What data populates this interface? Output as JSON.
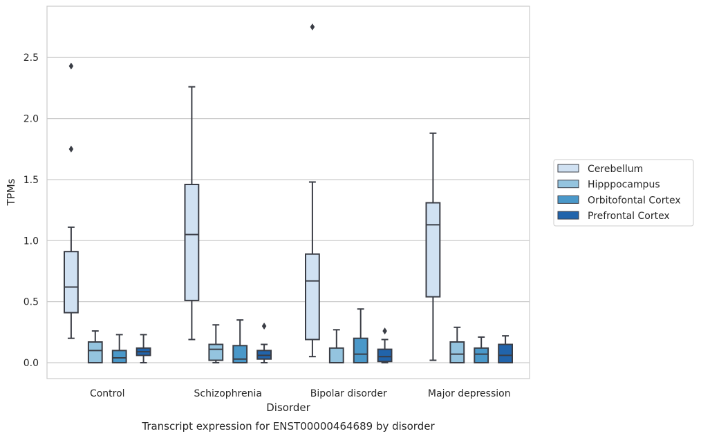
{
  "chart_data": {
    "type": "boxplot",
    "title": "",
    "caption": "Transcript expression for ENST00000464689 by disorder",
    "xlabel": "Disorder",
    "ylabel": "TPMs",
    "ylim": [
      -0.13,
      2.92
    ],
    "yticks": [
      0.0,
      0.5,
      1.0,
      1.5,
      2.0,
      2.5
    ],
    "ytick_labels": [
      "0.0",
      "0.5",
      "1.0",
      "1.5",
      "2.0",
      "2.5"
    ],
    "grid": "horizontal",
    "legend_position": "right",
    "categories": [
      "Control",
      "Schizophrenia",
      "Bipolar disorder",
      "Major depression"
    ],
    "series": [
      {
        "name": "Cerebellum",
        "color": "#d0e1f2",
        "boxes": [
          {
            "whislo": 0.2,
            "q1": 0.41,
            "med": 0.62,
            "q3": 0.91,
            "whishi": 1.11,
            "fliers": [
              1.75,
              2.43
            ]
          },
          {
            "whislo": 0.19,
            "q1": 0.51,
            "med": 1.05,
            "q3": 1.46,
            "whishi": 2.26,
            "fliers": []
          },
          {
            "whislo": 0.05,
            "q1": 0.19,
            "med": 0.67,
            "q3": 0.89,
            "whishi": 1.48,
            "fliers": [
              2.75
            ]
          },
          {
            "whislo": 0.02,
            "q1": 0.54,
            "med": 1.13,
            "q3": 1.31,
            "whishi": 1.88,
            "fliers": []
          }
        ]
      },
      {
        "name": "Hipppocampus",
        "color": "#94c4df",
        "boxes": [
          {
            "whislo": 0.0,
            "q1": 0.0,
            "med": 0.1,
            "q3": 0.17,
            "whishi": 0.26,
            "fliers": []
          },
          {
            "whislo": 0.0,
            "q1": 0.02,
            "med": 0.11,
            "q3": 0.15,
            "whishi": 0.31,
            "fliers": []
          },
          {
            "whislo": 0.0,
            "q1": 0.0,
            "med": 0.0,
            "q3": 0.12,
            "whishi": 0.27,
            "fliers": []
          },
          {
            "whislo": 0.0,
            "q1": 0.0,
            "med": 0.07,
            "q3": 0.17,
            "whishi": 0.29,
            "fliers": []
          }
        ]
      },
      {
        "name": "Orbitofontal Cortex",
        "color": "#4a98c9",
        "boxes": [
          {
            "whislo": 0.0,
            "q1": 0.0,
            "med": 0.04,
            "q3": 0.1,
            "whishi": 0.23,
            "fliers": []
          },
          {
            "whislo": 0.0,
            "q1": 0.0,
            "med": 0.03,
            "q3": 0.14,
            "whishi": 0.35,
            "fliers": []
          },
          {
            "whislo": 0.0,
            "q1": 0.0,
            "med": 0.07,
            "q3": 0.2,
            "whishi": 0.44,
            "fliers": []
          },
          {
            "whislo": 0.0,
            "q1": 0.0,
            "med": 0.07,
            "q3": 0.12,
            "whishi": 0.21,
            "fliers": []
          }
        ]
      },
      {
        "name": "Prefrontal Cortex",
        "color": "#2164ab",
        "boxes": [
          {
            "whislo": 0.0,
            "q1": 0.06,
            "med": 0.09,
            "q3": 0.12,
            "whishi": 0.23,
            "fliers": []
          },
          {
            "whislo": 0.0,
            "q1": 0.03,
            "med": 0.06,
            "q3": 0.1,
            "whishi": 0.15,
            "fliers": [
              0.3
            ]
          },
          {
            "whislo": 0.0,
            "q1": 0.01,
            "med": 0.05,
            "q3": 0.11,
            "whishi": 0.19,
            "fliers": [
              0.26
            ]
          },
          {
            "whislo": 0.0,
            "q1": 0.0,
            "med": 0.06,
            "q3": 0.15,
            "whishi": 0.22,
            "fliers": []
          }
        ]
      }
    ]
  }
}
